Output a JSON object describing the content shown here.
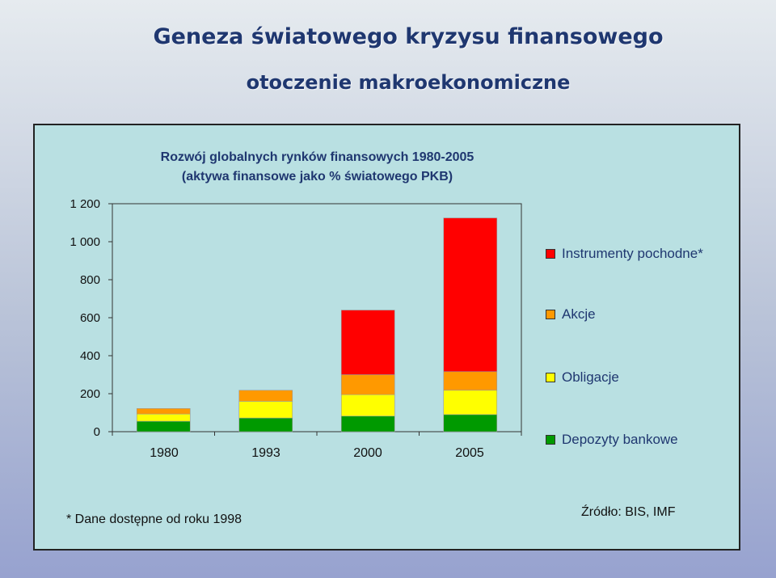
{
  "header": {
    "title": "Geneza światowego kryzysu finansowego",
    "subtitle": "otoczenie makroekonomiczne"
  },
  "chart_data": {
    "type": "bar",
    "stacked": true,
    "title": "Rozwój globalnych rynków finansowych 1980-2005",
    "subtitle": "(aktywa finansowe jako % światowego PKB)",
    "categories": [
      "1980",
      "1993",
      "2000",
      "2005"
    ],
    "yticks": [
      "0",
      "200",
      "400",
      "600",
      "800",
      "1 000",
      "1 200"
    ],
    "ylim": [
      0,
      1200
    ],
    "grid": false,
    "legend_position": "right",
    "series": [
      {
        "name": "Depozyty bankowe",
        "color": "#009a00",
        "values": [
          55,
          72,
          82,
          90
        ]
      },
      {
        "name": "Obligacje",
        "color": "#ffff00",
        "values": [
          38,
          88,
          113,
          128
        ]
      },
      {
        "name": "Akcje",
        "color": "#ff9900",
        "values": [
          29,
          58,
          105,
          98
        ]
      },
      {
        "name": "Instrumenty pochodne*",
        "color": "#ff0000",
        "values": [
          0,
          0,
          340,
          809
        ]
      }
    ]
  },
  "footnotes": {
    "left": "* Dane dostępne od roku 1998",
    "right": "Źródło: BIS, IMF"
  }
}
